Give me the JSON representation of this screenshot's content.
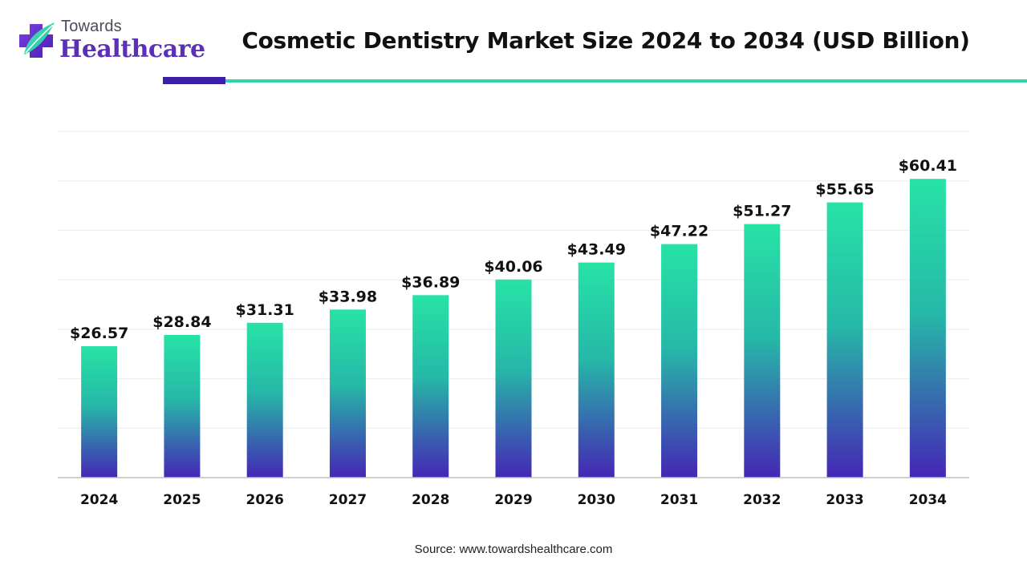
{
  "brand": {
    "line1": "Towards",
    "line2": "Healthcare"
  },
  "source_text": "Source: www.towardshealthcare.com",
  "colors": {
    "bar_top": "#27e3a6",
    "bar_bottom": "#4526b5",
    "brand_purple": "#5b2fb8",
    "rule_dark": "#3a1ea8",
    "rule_teal": "#2fd3a8",
    "grid": "#ececec",
    "axis": "#bfbfbf"
  },
  "chart_data": {
    "type": "bar",
    "title": "Cosmetic Dentistry Market Size 2024 to 2034 (USD Billion)",
    "xlabel": "",
    "ylabel": "",
    "categories": [
      "2024",
      "2025",
      "2026",
      "2027",
      "2028",
      "2029",
      "2030",
      "2031",
      "2032",
      "2033",
      "2034"
    ],
    "values": [
      26.57,
      28.84,
      31.31,
      33.98,
      36.89,
      40.06,
      43.49,
      47.22,
      51.27,
      55.65,
      60.41
    ],
    "value_labels": [
      "$26.57",
      "$28.84",
      "$31.31",
      "$33.98",
      "$36.89",
      "$40.06",
      "$43.49",
      "$47.22",
      "$51.27",
      "$55.65",
      "$60.41"
    ],
    "ylim": [
      0,
      70
    ],
    "grid": true,
    "legend": "none"
  }
}
